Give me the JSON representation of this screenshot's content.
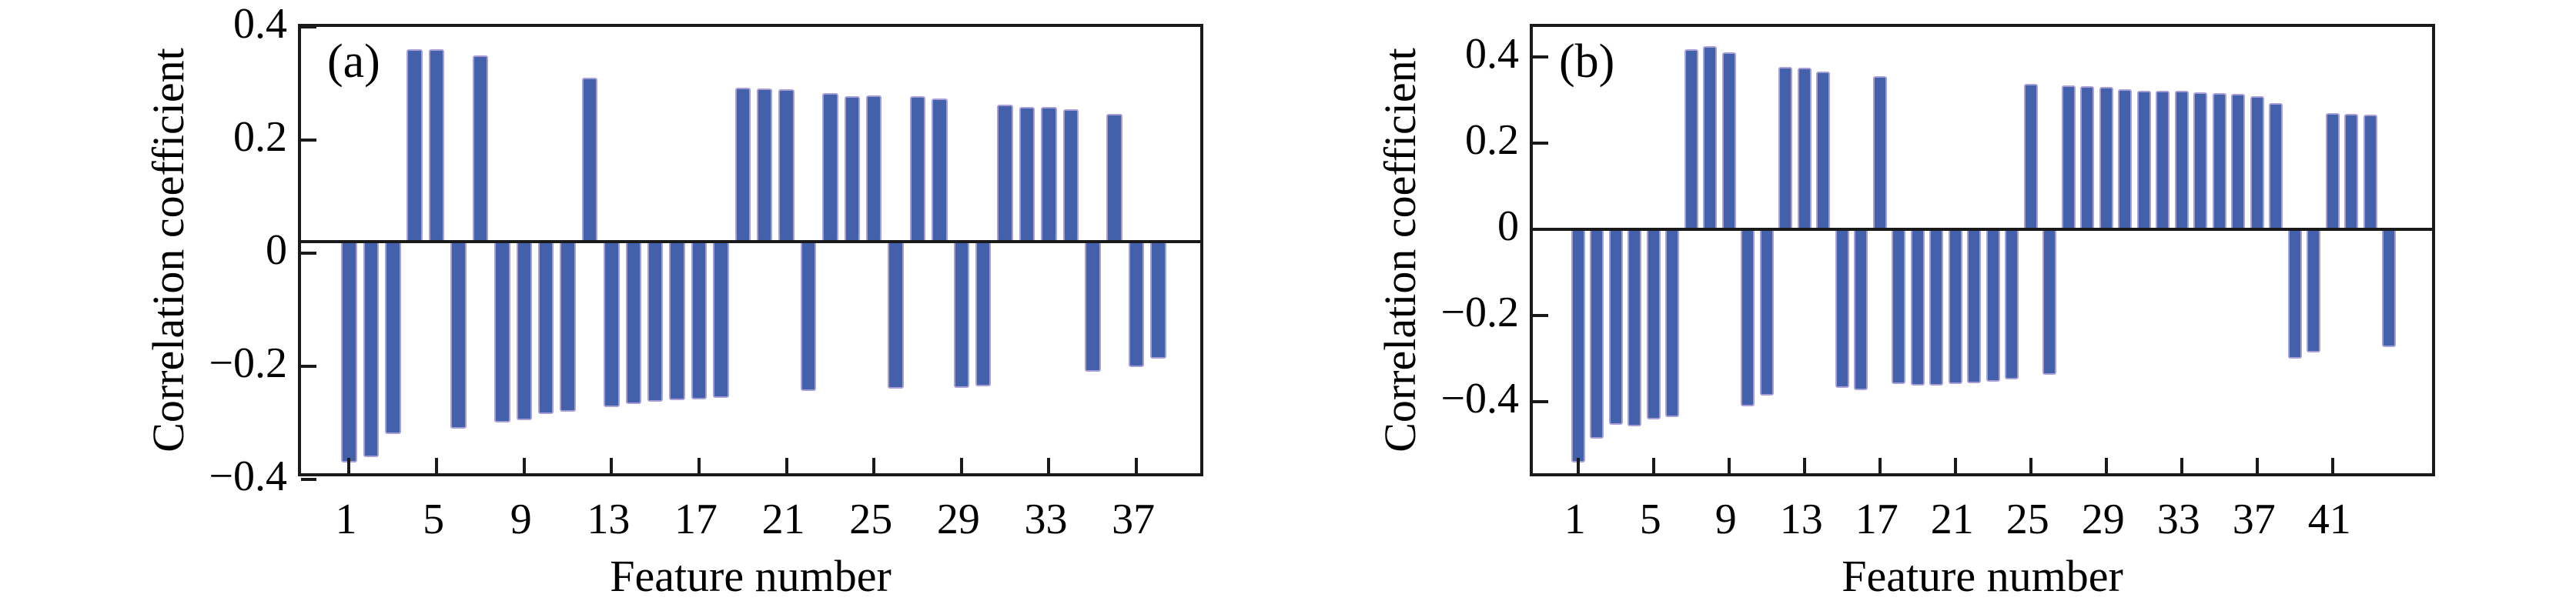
{
  "page": {
    "background": "#ffffff"
  },
  "style": {
    "bar_color": "#4360AB",
    "bar_edge_color": "#A79FD6",
    "axis_color": "#1a1a1a",
    "text_color": "#000000"
  },
  "chart_data": [
    {
      "id": "a",
      "type": "bar",
      "panel_label": "(a)",
      "xlabel": "Feature number",
      "ylabel": "Correlation coefficient",
      "categories": [
        1,
        2,
        3,
        4,
        5,
        6,
        7,
        8,
        9,
        10,
        11,
        12,
        13,
        14,
        15,
        16,
        17,
        18,
        19,
        20,
        21,
        22,
        23,
        24,
        25,
        26,
        27,
        28,
        29,
        30,
        31,
        32,
        33,
        34,
        35,
        36,
        37,
        38
      ],
      "values": [
        -0.37,
        -0.36,
        -0.32,
        0.36,
        0.36,
        -0.31,
        0.35,
        -0.3,
        -0.295,
        -0.285,
        -0.28,
        0.31,
        -0.272,
        -0.267,
        -0.263,
        -0.26,
        -0.258,
        -0.256,
        0.293,
        0.291,
        0.29,
        -0.243,
        0.283,
        0.278,
        0.279,
        -0.24,
        0.277,
        0.273,
        -0.238,
        -0.236,
        0.263,
        0.258,
        0.258,
        0.255,
        -0.21,
        0.246,
        -0.202,
        -0.187
      ],
      "x_tick_values": [
        1,
        5,
        9,
        13,
        17,
        21,
        25,
        29,
        33,
        37
      ],
      "x_tick_labels": [
        "1",
        "5",
        "9",
        "13",
        "17",
        "21",
        "25",
        "29",
        "33",
        "37"
      ],
      "y_tick_values": [
        0.4,
        0.2,
        0,
        -0.2,
        -0.4
      ],
      "y_tick_labels": [
        "0.4",
        "0.2",
        "0",
        "−0.2",
        "−0.4"
      ],
      "xlim": [
        -1.2,
        40.2
      ],
      "ylim": [
        -0.4,
        0.4
      ],
      "zero_line": 0.02,
      "grid": false,
      "legend": "none"
    },
    {
      "id": "b",
      "type": "bar",
      "panel_label": "(b)",
      "xlabel": "Feature number",
      "ylabel": "Correlation coefficient",
      "categories": [
        1,
        2,
        3,
        4,
        5,
        6,
        7,
        8,
        9,
        10,
        11,
        12,
        13,
        14,
        15,
        16,
        17,
        18,
        19,
        20,
        21,
        22,
        23,
        24,
        25,
        26,
        27,
        28,
        29,
        30,
        31,
        32,
        33,
        34,
        35,
        36,
        37,
        38,
        39,
        40,
        41,
        42,
        43,
        44
      ],
      "values": [
        -0.54,
        -0.485,
        -0.453,
        -0.456,
        -0.441,
        -0.436,
        0.419,
        0.425,
        0.411,
        -0.41,
        -0.386,
        0.378,
        0.375,
        0.366,
        -0.368,
        -0.372,
        0.356,
        -0.359,
        -0.363,
        -0.362,
        -0.359,
        -0.356,
        -0.353,
        -0.348,
        0.338,
        -0.337,
        0.334,
        0.332,
        0.331,
        0.326,
        0.322,
        0.321,
        0.322,
        0.319,
        0.317,
        0.314,
        0.31,
        0.293,
        -0.3,
        -0.286,
        0.27,
        0.268,
        0.267,
        -0.273
      ],
      "x_tick_values": [
        1,
        5,
        9,
        13,
        17,
        21,
        25,
        29,
        33,
        37,
        41
      ],
      "x_tick_labels": [
        "1",
        "5",
        "9",
        "13",
        "17",
        "21",
        "25",
        "29",
        "33",
        "37",
        "41"
      ],
      "y_tick_values": [
        0.4,
        0.2,
        0,
        -0.2,
        -0.4
      ],
      "y_tick_labels": [
        "0.4",
        "0.2",
        "0",
        "−0.2",
        "−0.4"
      ],
      "xlim": [
        -1.4,
        46.6
      ],
      "ylim": [
        -0.58,
        0.47
      ],
      "zero_line": 0,
      "grid": false,
      "legend": "none"
    }
  ]
}
